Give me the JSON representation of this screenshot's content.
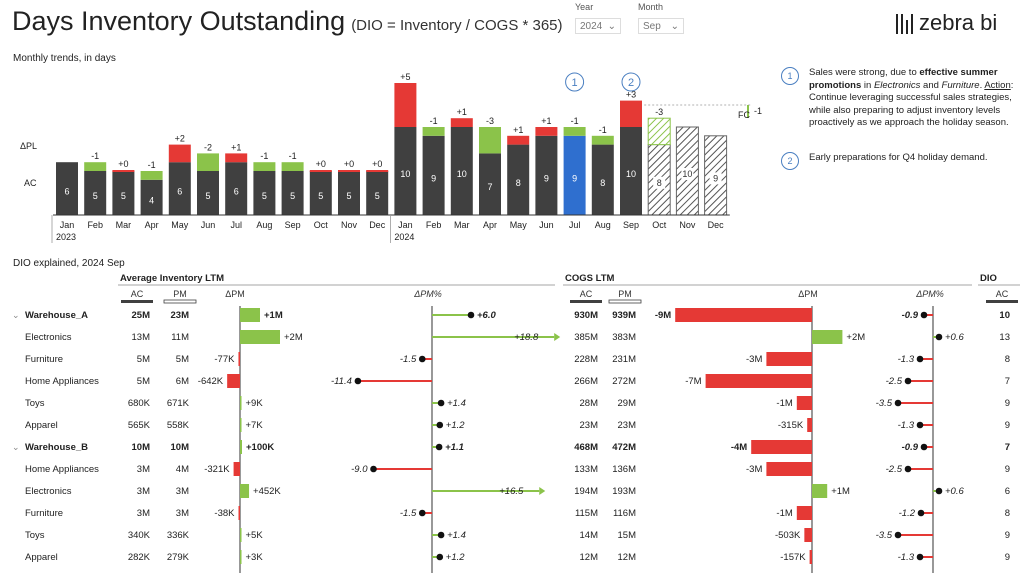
{
  "header": {
    "title": "Days Inventory Outstanding",
    "subtitle": "(DIO = Inventory / COGS * 365)",
    "year_label": "Year",
    "year_value": "2024",
    "month_label": "Month",
    "month_value": "Sep",
    "logo_text": "zebra bi"
  },
  "trend": {
    "title": "Monthly trends, in days",
    "row_labels": [
      "ΔPL",
      "AC"
    ],
    "year_labels": [
      "2023",
      "2024"
    ],
    "fc_label": "FC",
    "fc_delta": "-1",
    "colors": {
      "actual": "#404040",
      "highlight": "#2f6fcf",
      "pos": "#8bc34a",
      "neg": "#e53935"
    }
  },
  "chart_data": {
    "type": "bar",
    "categories": [
      "Jan",
      "Feb",
      "Mar",
      "Apr",
      "May",
      "Jun",
      "Jul",
      "Aug",
      "Sep",
      "Oct",
      "Nov",
      "Dec",
      "Jan",
      "Feb",
      "Mar",
      "Apr",
      "May",
      "Jun",
      "Jul",
      "Aug",
      "Sep",
      "Oct",
      "Nov",
      "Dec"
    ],
    "values": [
      6,
      5,
      5,
      4,
      6,
      5,
      6,
      5,
      5,
      5,
      5,
      5,
      10,
      9,
      10,
      7,
      8,
      9,
      9,
      8,
      10,
      8,
      10,
      9
    ],
    "scenario": [
      "AC",
      "AC",
      "AC",
      "AC",
      "AC",
      "AC",
      "AC",
      "AC",
      "AC",
      "AC",
      "AC",
      "AC",
      "AC",
      "AC",
      "AC",
      "AC",
      "AC",
      "AC",
      "AC",
      "AC",
      "AC",
      "FC",
      "FC",
      "FC"
    ],
    "delta_pl": [
      "",
      "-1",
      "+0",
      "-1",
      "+2",
      "-2",
      "+1",
      "-1",
      "-1",
      "+0",
      "+0",
      "+0",
      "+5",
      "-1",
      "+1",
      "-3",
      "+1",
      "+1",
      "-1",
      "-1",
      "+3",
      "-3",
      "",
      ""
    ],
    "delta_val": [
      0,
      -1,
      0,
      -1,
      2,
      -2,
      1,
      -1,
      -1,
      0,
      0,
      0,
      5,
      -1,
      1,
      -3,
      1,
      1,
      -1,
      -1,
      3,
      -3,
      0,
      0
    ],
    "highlight_index": 18,
    "annotations": [
      {
        "index": 18,
        "label": "1"
      },
      {
        "index": 20,
        "label": "2"
      }
    ]
  },
  "comments": [
    {
      "num": "1",
      "parts": [
        {
          "t": "Sales were strong, due to "
        },
        {
          "t": "effective summer promotions",
          "b": true
        },
        {
          "t": " in "
        },
        {
          "t": "Electronics",
          "i": true
        },
        {
          "t": " and "
        },
        {
          "t": "Furniture",
          "i": true
        },
        {
          "t": ". "
        },
        {
          "t": "Action",
          "u": true
        },
        {
          "t": ": Continue leveraging successful sales strategies, while also preparing to adjust inventory levels proactively as we approach the holiday season."
        }
      ]
    },
    {
      "num": "2",
      "parts": [
        {
          "t": "Early preparations for Q4 holiday demand."
        }
      ]
    }
  ],
  "table": {
    "title": "DIO explained, 2024 Sep",
    "groups": {
      "inv": "Average Inventory LTM",
      "cogs": "COGS LTM",
      "dio": "DIO"
    },
    "sub": {
      "ac": "AC",
      "pm": "PM",
      "dpm": "ΔPM",
      "dpmp": "ΔPM%"
    },
    "rows": [
      {
        "name": "Warehouse_A",
        "bold": true,
        "expand": true,
        "inv_ac": "25M",
        "inv_pm": "23M",
        "inv_dpm": "+1M",
        "inv_dpm_v": 1,
        "inv_pct": "+6.0",
        "inv_pct_v": 6.0,
        "cogs_ac": "930M",
        "cogs_pm": "939M",
        "cogs_dpm": "-9M",
        "cogs_dpm_v": -9,
        "cogs_pct": "-0.9",
        "cogs_pct_v": -0.9,
        "dio": "10"
      },
      {
        "name": "Electronics",
        "inv_ac": "13M",
        "inv_pm": "11M",
        "inv_dpm": "+2M",
        "inv_dpm_v": 2,
        "inv_pct": "+18.8",
        "inv_pct_v": 18.8,
        "cogs_ac": "385M",
        "cogs_pm": "383M",
        "cogs_dpm": "+2M",
        "cogs_dpm_v": 2,
        "cogs_pct": "+0.6",
        "cogs_pct_v": 0.6,
        "dio": "13"
      },
      {
        "name": "Furniture",
        "inv_ac": "5M",
        "inv_pm": "5M",
        "inv_dpm": "-77K",
        "inv_dpm_v": -0.077,
        "inv_pct": "-1.5",
        "inv_pct_v": -1.5,
        "cogs_ac": "228M",
        "cogs_pm": "231M",
        "cogs_dpm": "-3M",
        "cogs_dpm_v": -3,
        "cogs_pct": "-1.3",
        "cogs_pct_v": -1.3,
        "dio": "8"
      },
      {
        "name": "Home Appliances",
        "inv_ac": "5M",
        "inv_pm": "6M",
        "inv_dpm": "-642K",
        "inv_dpm_v": -0.642,
        "inv_pct": "-11.4",
        "inv_pct_v": -11.4,
        "cogs_ac": "266M",
        "cogs_pm": "272M",
        "cogs_dpm": "-7M",
        "cogs_dpm_v": -7,
        "cogs_pct": "-2.5",
        "cogs_pct_v": -2.5,
        "dio": "7"
      },
      {
        "name": "Toys",
        "inv_ac": "680K",
        "inv_pm": "671K",
        "inv_dpm": "+9K",
        "inv_dpm_v": 0.009,
        "inv_pct": "+1.4",
        "inv_pct_v": 1.4,
        "cogs_ac": "28M",
        "cogs_pm": "29M",
        "cogs_dpm": "-1M",
        "cogs_dpm_v": -1,
        "cogs_pct": "-3.5",
        "cogs_pct_v": -3.5,
        "dio": "9"
      },
      {
        "name": "Apparel",
        "inv_ac": "565K",
        "inv_pm": "558K",
        "inv_dpm": "+7K",
        "inv_dpm_v": 0.007,
        "inv_pct": "+1.2",
        "inv_pct_v": 1.2,
        "cogs_ac": "23M",
        "cogs_pm": "23M",
        "cogs_dpm": "-315K",
        "cogs_dpm_v": -0.315,
        "cogs_pct": "-1.3",
        "cogs_pct_v": -1.3,
        "dio": "9"
      },
      {
        "name": "Warehouse_B",
        "bold": true,
        "expand": true,
        "inv_ac": "10M",
        "inv_pm": "10M",
        "inv_dpm": "+100K",
        "inv_dpm_v": 0.1,
        "inv_pct": "+1.1",
        "inv_pct_v": 1.1,
        "cogs_ac": "468M",
        "cogs_pm": "472M",
        "cogs_dpm": "-4M",
        "cogs_dpm_v": -4,
        "cogs_pct": "-0.9",
        "cogs_pct_v": -0.9,
        "dio": "7"
      },
      {
        "name": "Home Appliances",
        "inv_ac": "3M",
        "inv_pm": "4M",
        "inv_dpm": "-321K",
        "inv_dpm_v": -0.321,
        "inv_pct": "-9.0",
        "inv_pct_v": -9.0,
        "cogs_ac": "133M",
        "cogs_pm": "136M",
        "cogs_dpm": "-3M",
        "cogs_dpm_v": -3,
        "cogs_pct": "-2.5",
        "cogs_pct_v": -2.5,
        "dio": "9"
      },
      {
        "name": "Electronics",
        "inv_ac": "3M",
        "inv_pm": "3M",
        "inv_dpm": "+452K",
        "inv_dpm_v": 0.452,
        "inv_pct": "+16.5",
        "inv_pct_v": 16.5,
        "cogs_ac": "194M",
        "cogs_pm": "193M",
        "cogs_dpm": "+1M",
        "cogs_dpm_v": 1,
        "cogs_pct": "+0.6",
        "cogs_pct_v": 0.6,
        "dio": "6"
      },
      {
        "name": "Furniture",
        "inv_ac": "3M",
        "inv_pm": "3M",
        "inv_dpm": "-38K",
        "inv_dpm_v": -0.038,
        "inv_pct": "-1.5",
        "inv_pct_v": -1.5,
        "cogs_ac": "115M",
        "cogs_pm": "116M",
        "cogs_dpm": "-1M",
        "cogs_dpm_v": -1,
        "cogs_pct": "-1.2",
        "cogs_pct_v": -1.2,
        "dio": "8"
      },
      {
        "name": "Toys",
        "inv_ac": "340K",
        "inv_pm": "336K",
        "inv_dpm": "+5K",
        "inv_dpm_v": 0.005,
        "inv_pct": "+1.4",
        "inv_pct_v": 1.4,
        "cogs_ac": "14M",
        "cogs_pm": "15M",
        "cogs_dpm": "-503K",
        "cogs_dpm_v": -0.503,
        "cogs_pct": "-3.5",
        "cogs_pct_v": -3.5,
        "dio": "9"
      },
      {
        "name": "Apparel",
        "inv_ac": "282K",
        "inv_pm": "279K",
        "inv_dpm": "+3K",
        "inv_dpm_v": 0.003,
        "inv_pct": "+1.2",
        "inv_pct_v": 1.2,
        "cogs_ac": "12M",
        "cogs_pm": "12M",
        "cogs_dpm": "-157K",
        "cogs_dpm_v": -0.157,
        "cogs_pct": "-1.3",
        "cogs_pct_v": -1.3,
        "dio": "9"
      }
    ]
  }
}
